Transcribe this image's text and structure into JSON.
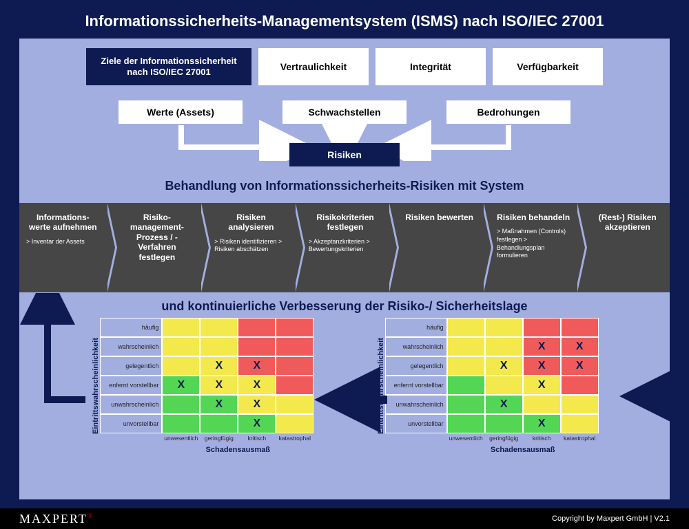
{
  "title": "Informationssicherheits-Managementsystem (ISMS) nach ISO/IEC 27001",
  "colors": {
    "frame": "#0d1b52",
    "inner_bg": "#a3aee0",
    "chevron_bg": "#464646",
    "matrix_green": "#53d654",
    "matrix_yellow": "#f3e94d",
    "matrix_red": "#f15a5a",
    "footer_bg": "#000000"
  },
  "top": {
    "ziele": "Ziele der Informationssicherheit nach ISO/IEC 27001",
    "goals": [
      "Vertraulichkeit",
      "Integrität",
      "Verfügbarkeit"
    ]
  },
  "row2": [
    "Werte (Assets)",
    "Schwachstellen",
    "Bedrohungen"
  ],
  "risiken": "Risiken",
  "subtitle1": "Behandlung von Informationssicherheits-Risiken mit System",
  "process": [
    {
      "title": "Informations-\nwerte aufnehmen",
      "sub": "> Inventar der Assets"
    },
    {
      "title": "Risiko-\nmanagement-\nProzess / -Verfahren festlegen",
      "sub": ""
    },
    {
      "title": "Risiken analysieren",
      "sub": "> Risiken identifizieren\n> Risiken abschätzen"
    },
    {
      "title": "Risikokriterien festlegen",
      "sub": "> Akzeptanzkriterien\n> Bewertungskriterien"
    },
    {
      "title": "Risiken bewerten",
      "sub": ""
    },
    {
      "title": "Risiken behandeln",
      "sub": "> Maßnahmen (Controls) festlegen\n> Behandlungsplan formulieren"
    },
    {
      "title": "(Rest-) Risiken akzeptieren",
      "sub": ""
    }
  ],
  "subtitle2": "und kontinuierliche Verbesserung der Risiko-/ Sicherheitslage",
  "matrix": {
    "ylabel": "Eintrittswahrscheinlichkeit",
    "xlabel": "Schadensausmaß",
    "rows": [
      "häufig",
      "wahrscheinlich",
      "gelegentlich",
      "enfernt vorstellbar",
      "unwahrscheinlich",
      "unvorstellbar"
    ],
    "cols": [
      "unwesentlich",
      "geringfügig",
      "kritisch",
      "katastrophal"
    ],
    "color_grid": [
      [
        "y",
        "y",
        "r",
        "r"
      ],
      [
        "y",
        "y",
        "r",
        "r"
      ],
      [
        "y",
        "y",
        "r",
        "r"
      ],
      [
        "g",
        "y",
        "y",
        "r"
      ],
      [
        "g",
        "g",
        "y",
        "y"
      ],
      [
        "g",
        "g",
        "g",
        "y"
      ]
    ],
    "left_marks": [
      [
        "",
        "",
        "",
        ""
      ],
      [
        "",
        "",
        "",
        ""
      ],
      [
        "",
        "X",
        "X",
        ""
      ],
      [
        "X",
        "X",
        "X",
        ""
      ],
      [
        "",
        "X",
        "X",
        ""
      ],
      [
        "",
        "",
        "X",
        ""
      ]
    ],
    "right_marks": [
      [
        "",
        "",
        "",
        ""
      ],
      [
        "",
        "",
        "X",
        "X"
      ],
      [
        "",
        "X",
        "X",
        "X"
      ],
      [
        "",
        "",
        "X",
        ""
      ],
      [
        "",
        "X",
        "",
        ""
      ],
      [
        "",
        "",
        "X",
        ""
      ]
    ]
  },
  "footer": {
    "logo": "MAXPERT",
    "copyright": "Copyright by Maxpert GmbH  |  V2.1"
  }
}
